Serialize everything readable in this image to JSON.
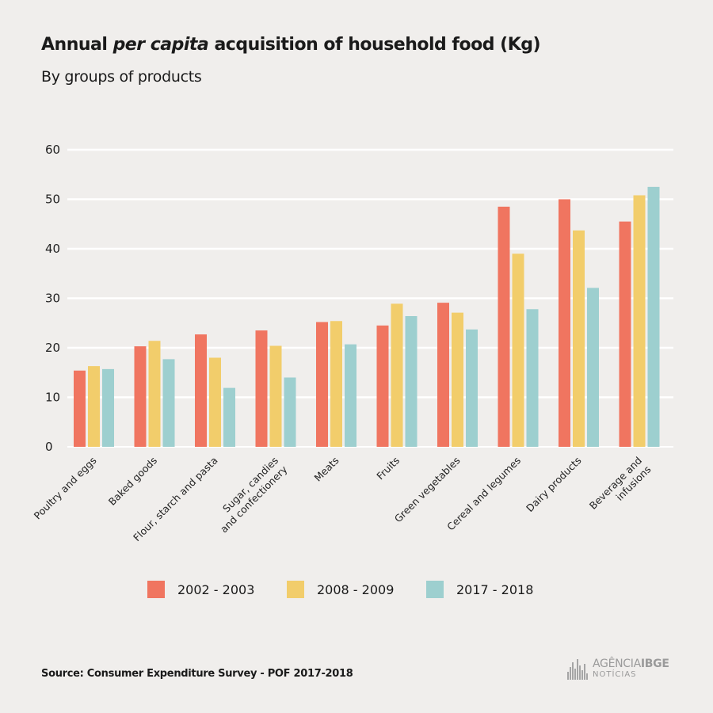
{
  "header": {
    "title_pre": "Annual ",
    "title_em": "per capita",
    "title_post": " acquisition of household food (Kg)",
    "subtitle": "By groups of products"
  },
  "chart_data": {
    "type": "bar",
    "categories": [
      [
        "Poultry and eggs"
      ],
      [
        "Baked goods"
      ],
      [
        "Flour, starch and pasta"
      ],
      [
        "Sugar, candies",
        "and confectionery"
      ],
      [
        "Meats"
      ],
      [
        "Fruits"
      ],
      [
        "Green vegetables"
      ],
      [
        "Cereal and legumes"
      ],
      [
        "Dairy products"
      ],
      [
        "Beverage and",
        "infusions"
      ]
    ],
    "series": [
      {
        "name": "2002 - 2003",
        "color": "#f07560",
        "values": [
          15.4,
          20.3,
          22.7,
          23.5,
          25.2,
          24.5,
          29.1,
          48.5,
          50.0,
          45.5
        ]
      },
      {
        "name": "2008 - 2009",
        "color": "#f2cd6b",
        "values": [
          16.3,
          21.4,
          18.0,
          20.4,
          25.4,
          28.9,
          27.1,
          39.0,
          43.7,
          50.8
        ]
      },
      {
        "name": "2017 - 2018",
        "color": "#9dcfcf",
        "values": [
          15.7,
          17.7,
          11.9,
          14.0,
          20.7,
          26.4,
          23.7,
          27.8,
          32.1,
          52.5
        ]
      }
    ],
    "ylim": [
      0,
      60
    ],
    "yticks": [
      "0",
      "10",
      "20",
      "30",
      "40",
      "50",
      "60"
    ],
    "grid": true,
    "legend": "bottom"
  },
  "footer": {
    "source": "Source:  Consumer Expenditure Survey - POF 2017-2018",
    "logo_light": "AGÊNCIA",
    "logo_bold": "IBGE",
    "logo_sub": "NOTÍCIAS"
  }
}
